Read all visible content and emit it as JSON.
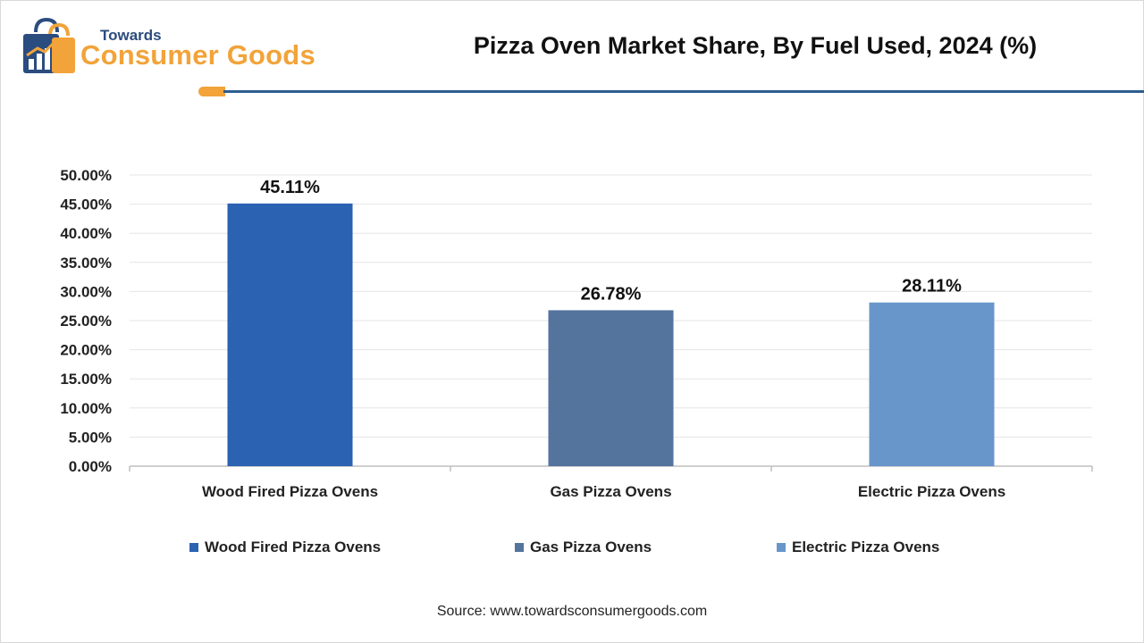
{
  "brand": {
    "top_text": "Towards",
    "main_text": "Consumer Goods",
    "accent_color": "#f2a33a",
    "dark_color": "#2b4c7e"
  },
  "source_text": "Source: www.towardsconsumergoods.com",
  "chart_data": {
    "type": "bar",
    "title": "Pizza Oven Market Share, By Fuel Used, 2024 (%)",
    "categories": [
      "Wood Fired Pizza Ovens",
      "Gas Pizza Ovens",
      "Electric Pizza Ovens"
    ],
    "values": [
      45.11,
      26.78,
      28.11
    ],
    "data_labels": [
      "45.11%",
      "26.78%",
      "28.11%"
    ],
    "colors": [
      "#2b62b2",
      "#54749e",
      "#6896cb"
    ],
    "xlabel": "",
    "ylabel": "",
    "ylim": [
      0,
      50
    ],
    "yticks": [
      0,
      5,
      10,
      15,
      20,
      25,
      30,
      35,
      40,
      45,
      50
    ],
    "ytick_labels": [
      "0.00%",
      "5.00%",
      "10.00%",
      "15.00%",
      "20.00%",
      "25.00%",
      "30.00%",
      "35.00%",
      "40.00%",
      "45.00%",
      "50.00%"
    ],
    "grid": true,
    "legend": [
      "Wood Fired Pizza Ovens",
      "Gas Pizza Ovens",
      "Electric Pizza Ovens"
    ],
    "legend_position": "bottom"
  }
}
